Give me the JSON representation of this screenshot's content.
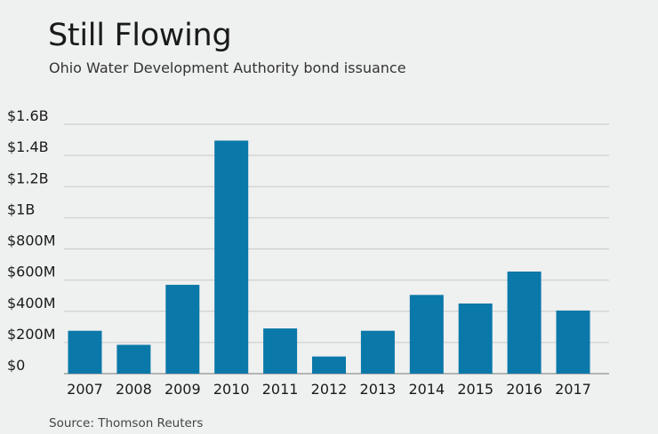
{
  "chart_data": {
    "type": "bar",
    "title": "Still Flowing",
    "subtitle": "Ohio Water Development Authority bond issuance",
    "source": "Source: Thomson Reuters",
    "categories": [
      "2007",
      "2008",
      "2009",
      "2010",
      "2011",
      "2012",
      "2013",
      "2014",
      "2015",
      "2016",
      "2017"
    ],
    "values": [
      275,
      185,
      570,
      1495,
      290,
      110,
      275,
      505,
      450,
      655,
      405
    ],
    "value_unit": "$M",
    "ylim": [
      0,
      1600
    ],
    "yticks": [
      0,
      200,
      400,
      600,
      800,
      1000,
      1200,
      1400,
      1600
    ],
    "ytick_labels": [
      "$0",
      "$200M",
      "$400M",
      "$600M",
      "$800M",
      "$1B",
      "$1.2B",
      "$1.4B",
      "$1.6B"
    ],
    "xlabel": "",
    "ylabel": "",
    "grid": true,
    "bar_color": "#0a78a8",
    "grid_color": "#c9c9c9",
    "axis_color": "#777777"
  }
}
